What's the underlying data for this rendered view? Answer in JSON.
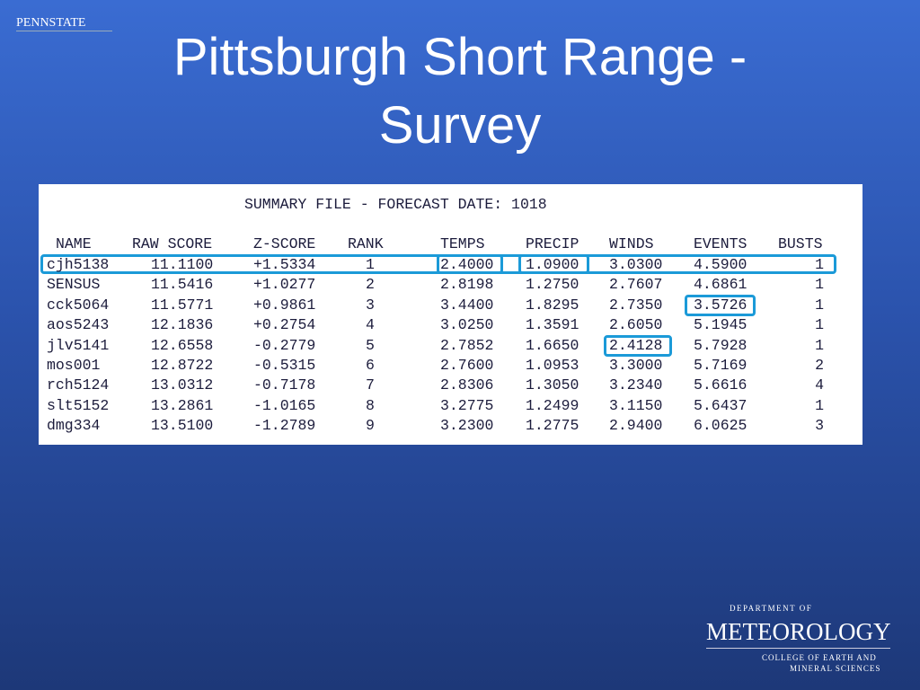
{
  "header": {
    "logo": "PENNSTATE",
    "title": "Pittsburgh Short Range - Survey"
  },
  "table": {
    "caption": "SUMMARY FILE - FORECAST DATE: 1018",
    "columns": [
      "NAME",
      "RAW SCORE",
      "Z-SCORE",
      "RANK",
      "TEMPS",
      "PRECIP",
      "WINDS",
      "EVENTS",
      "BUSTS"
    ],
    "rows": [
      [
        "cjh5138",
        "11.1100",
        "+1.5334",
        "1",
        "2.4000",
        "1.0900",
        "3.0300",
        "4.5900",
        "1"
      ],
      [
        "SENSUS",
        "11.5416",
        "+1.0277",
        "2",
        "2.8198",
        "1.2750",
        "2.7607",
        "4.6861",
        "1"
      ],
      [
        "cck5064",
        "11.5771",
        "+0.9861",
        "3",
        "3.4400",
        "1.8295",
        "2.7350",
        "3.5726",
        "1"
      ],
      [
        "aos5243",
        "12.1836",
        "+0.2754",
        "4",
        "3.0250",
        "1.3591",
        "2.6050",
        "5.1945",
        "1"
      ],
      [
        "jlv5141",
        "12.6558",
        "-0.2779",
        "5",
        "2.7852",
        "1.6650",
        "2.4128",
        "5.7928",
        "1"
      ],
      [
        "mos001",
        "12.8722",
        "-0.5315",
        "6",
        "2.7600",
        "1.0953",
        "3.3000",
        "5.7169",
        "2"
      ],
      [
        "rch5124",
        "13.0312",
        "-0.7178",
        "7",
        "2.8306",
        "1.3050",
        "3.2340",
        "5.6616",
        "4"
      ],
      [
        "slt5152",
        "13.2861",
        "-1.0165",
        "8",
        "3.2775",
        "1.2499",
        "3.1150",
        "5.6437",
        "1"
      ],
      [
        "dmg334",
        "13.5100",
        "-1.2789",
        "9",
        "3.2300",
        "1.2775",
        "2.9400",
        "6.0625",
        "3"
      ]
    ]
  },
  "footer": {
    "department": "DEPARTMENT OF",
    "name": "METEOROLOGY",
    "college_line1": "COLLEGE OF EARTH AND",
    "college_line2": "MINERAL SCIENCES"
  }
}
